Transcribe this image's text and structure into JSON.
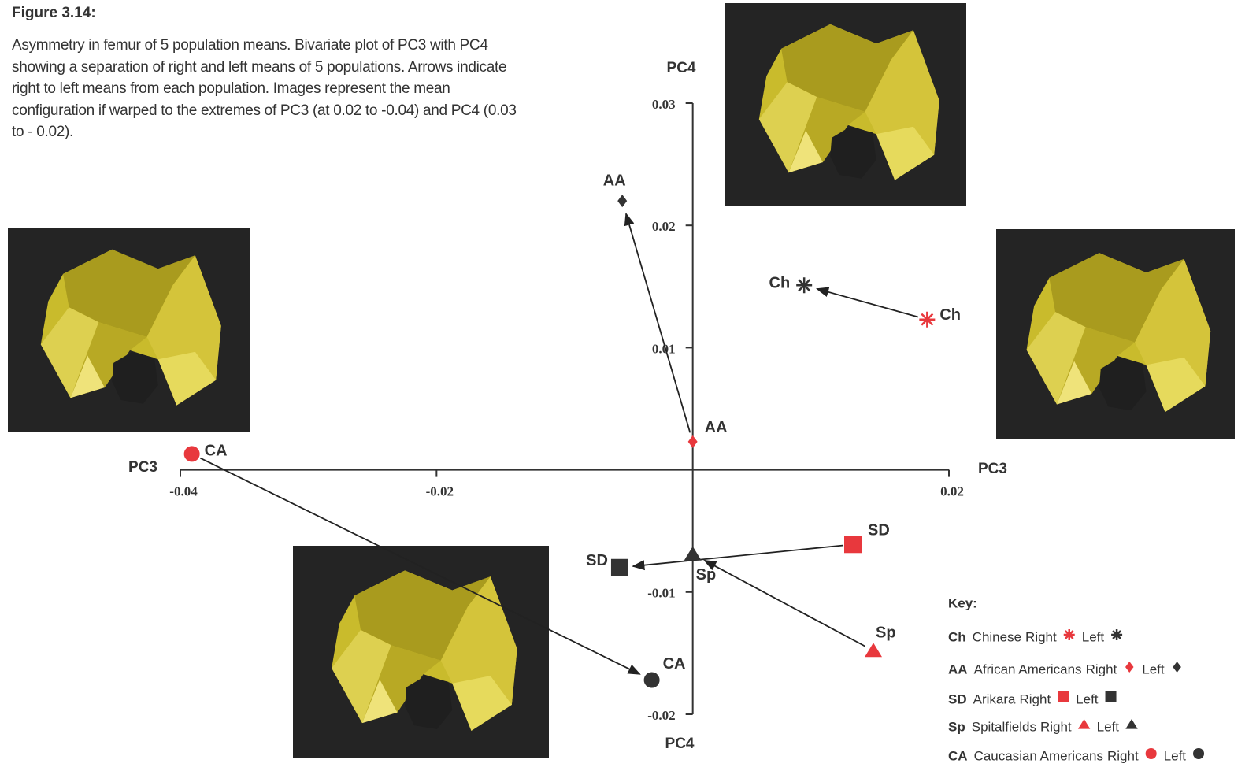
{
  "chart_data": {
    "type": "scatter",
    "figure_label": "Figure 3.14:",
    "caption": "Asymmetry in femur of 5 population means. Bivariate plot of PC3 with PC4 showing a separation of right and left means of 5 populations. Arrows indicate right to left means from each population. Images represent the mean configuration if warped to the extremes of PC3 (at 0.02 to -0.04) and PC4 (0.03 to - 0.02).",
    "x_label": "PC3",
    "y_label": "PC4",
    "xlim": [
      -0.04,
      0.02
    ],
    "ylim": [
      -0.02,
      0.03
    ],
    "xticks": [
      -0.04,
      -0.02,
      0.02
    ],
    "yticks": [
      0.03,
      0.02,
      0.01,
      -0.01,
      -0.02
    ],
    "legend_title": "Key:",
    "right_label": "Right",
    "left_label": "Left",
    "right_color": "#e8383d",
    "left_color": "#333333",
    "series": [
      {
        "abbr": "Ch",
        "name": "Chinese",
        "marker": "asterisk",
        "x": [
          0.0183,
          0.0087
        ],
        "y": [
          0.0123,
          0.0151
        ]
      },
      {
        "abbr": "AA",
        "name": "African Americans",
        "marker": "diamond",
        "x": [
          0.0,
          -0.0055
        ],
        "y": [
          0.0023,
          0.022
        ]
      },
      {
        "abbr": "SD",
        "name": "Arikara",
        "marker": "square",
        "x": [
          0.0125,
          -0.0057
        ],
        "y": [
          -0.0061,
          -0.008
        ]
      },
      {
        "abbr": "Sp",
        "name": "Spitalfields",
        "marker": "triangle",
        "x": [
          0.0141,
          0.0
        ],
        "y": [
          -0.0148,
          -0.0069
        ]
      },
      {
        "abbr": "CA",
        "name": "Caucasian Americans",
        "marker": "circle",
        "x": [
          -0.0391,
          -0.0032
        ],
        "y": [
          0.0013,
          -0.0172
        ]
      }
    ]
  }
}
